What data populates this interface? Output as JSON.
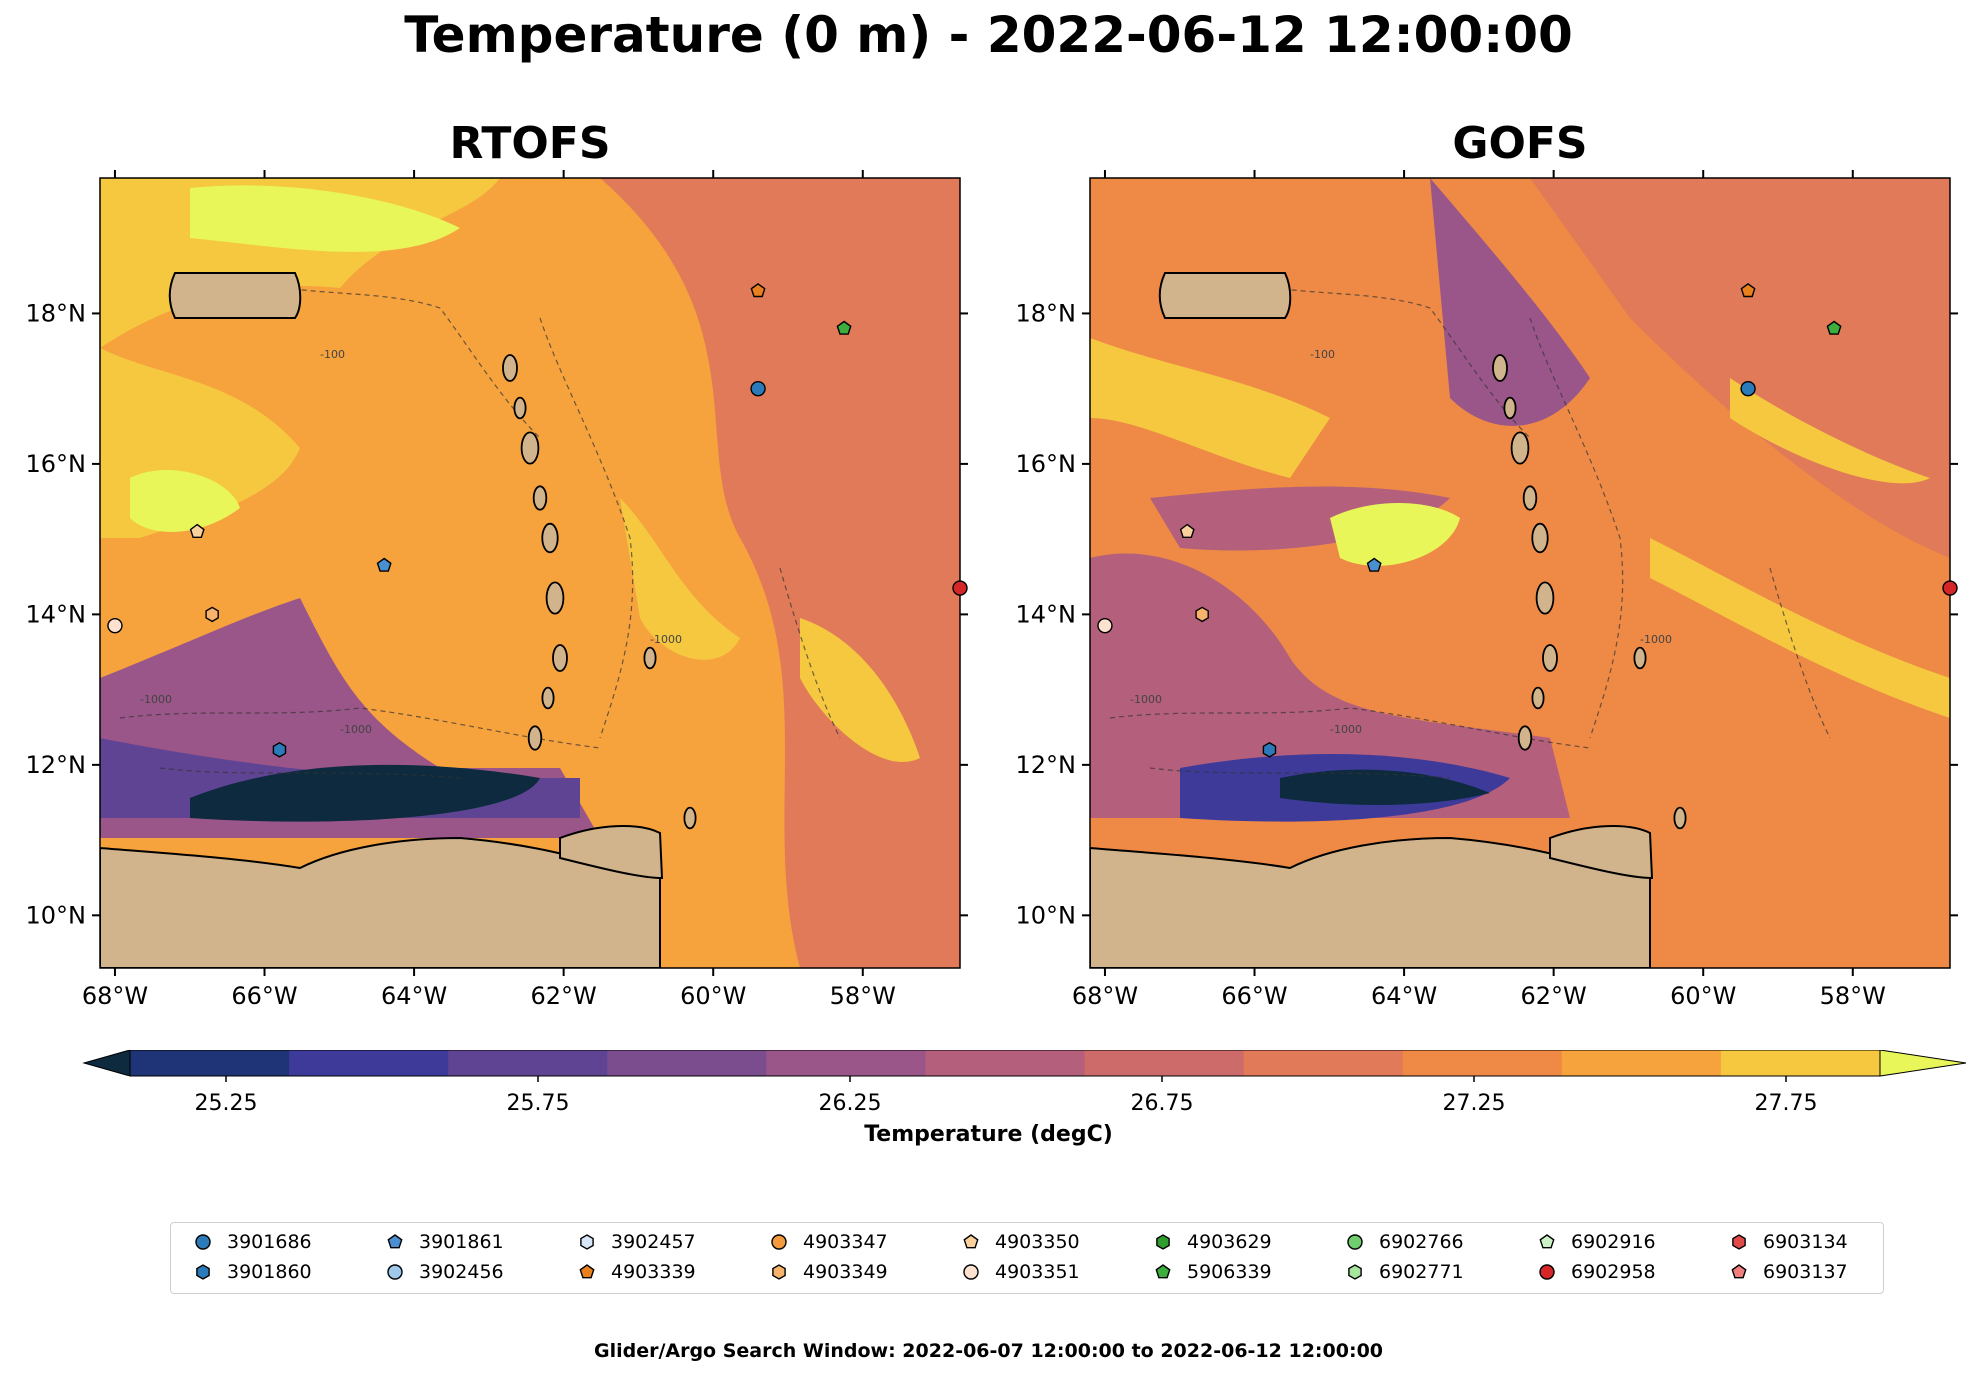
{
  "suptitle": "Temperature (0 m) - 2022-06-12 12:00:00",
  "panels": [
    {
      "title": "RTOFS"
    },
    {
      "title": "GOFS"
    }
  ],
  "axes": {
    "lat_ticks": [
      "18°N",
      "16°N",
      "14°N",
      "12°N",
      "10°N"
    ],
    "lon_ticks": [
      "68°W",
      "66°W",
      "64°W",
      "62°W",
      "60°W",
      "58°W"
    ],
    "lon_range": [
      -68.2,
      -56.7
    ],
    "lat_range": [
      9.3,
      19.8
    ]
  },
  "colorbar": {
    "label": "Temperature (degC)",
    "ticks": [
      "25.25",
      "25.75",
      "26.25",
      "26.75",
      "27.25",
      "27.75"
    ],
    "extend": "both",
    "colors": [
      "#0d2a3e",
      "#1e3476",
      "#3d3a9a",
      "#5f4493",
      "#7c4d8e",
      "#9a5589",
      "#b45f7c",
      "#cd6a6a",
      "#e07a58",
      "#ee8a45",
      "#f6a23d",
      "#f5c840",
      "#e8f65a"
    ]
  },
  "contour_labels": [
    "-1000",
    "-100"
  ],
  "floats": [
    {
      "id": "3901686",
      "marker": "circle",
      "color": "#2b7bba",
      "lon": -59.4,
      "lat": 17.0
    },
    {
      "id": "3901860",
      "marker": "hexagon",
      "color": "#2b7bba",
      "lon": -65.8,
      "lat": 12.2
    },
    {
      "id": "3901861",
      "marker": "pentagon",
      "color": "#4a8fd0",
      "lon": -64.4,
      "lat": 14.65
    },
    {
      "id": "3902456",
      "marker": "circle",
      "color": "#9fc8ea",
      "lon": null,
      "lat": null
    },
    {
      "id": "3902457",
      "marker": "hexagon",
      "color": "#d6e8f7",
      "lon": null,
      "lat": null
    },
    {
      "id": "4903339",
      "marker": "pentagon",
      "color": "#e8801d",
      "lon": -59.4,
      "lat": 18.3
    },
    {
      "id": "4903347",
      "marker": "circle",
      "color": "#f29a3c",
      "lon": null,
      "lat": null
    },
    {
      "id": "4903349",
      "marker": "hexagon",
      "color": "#f7b26b",
      "lon": -66.7,
      "lat": 14.0
    },
    {
      "id": "4903350",
      "marker": "pentagon",
      "color": "#fad19c",
      "lon": -66.9,
      "lat": 15.1
    },
    {
      "id": "4903351",
      "marker": "circle",
      "color": "#fde3cf",
      "lon": -68.0,
      "lat": 13.85
    },
    {
      "id": "4903629",
      "marker": "hexagon",
      "color": "#2f9e2f",
      "lon": null,
      "lat": null
    },
    {
      "id": "5906339",
      "marker": "pentagon",
      "color": "#3dae3d",
      "lon": -58.25,
      "lat": 17.8
    },
    {
      "id": "6902766",
      "marker": "circle",
      "color": "#6fcf6f",
      "lon": null,
      "lat": null
    },
    {
      "id": "6902771",
      "marker": "hexagon",
      "color": "#a8e6a0",
      "lon": null,
      "lat": null
    },
    {
      "id": "6902916",
      "marker": "pentagon",
      "color": "#cdf2c8",
      "lon": null,
      "lat": null
    },
    {
      "id": "6902958",
      "marker": "circle",
      "color": "#d62728",
      "lon": -56.7,
      "lat": 14.35
    },
    {
      "id": "6903134",
      "marker": "hexagon",
      "color": "#e24a4a",
      "lon": null,
      "lat": null
    },
    {
      "id": "6903137",
      "marker": "pentagon",
      "color": "#f07e7e",
      "lon": null,
      "lat": null
    }
  ],
  "footer": "Glider/Argo Search Window: 2022-06-07 12:00:00 to 2022-06-12 12:00:00"
}
